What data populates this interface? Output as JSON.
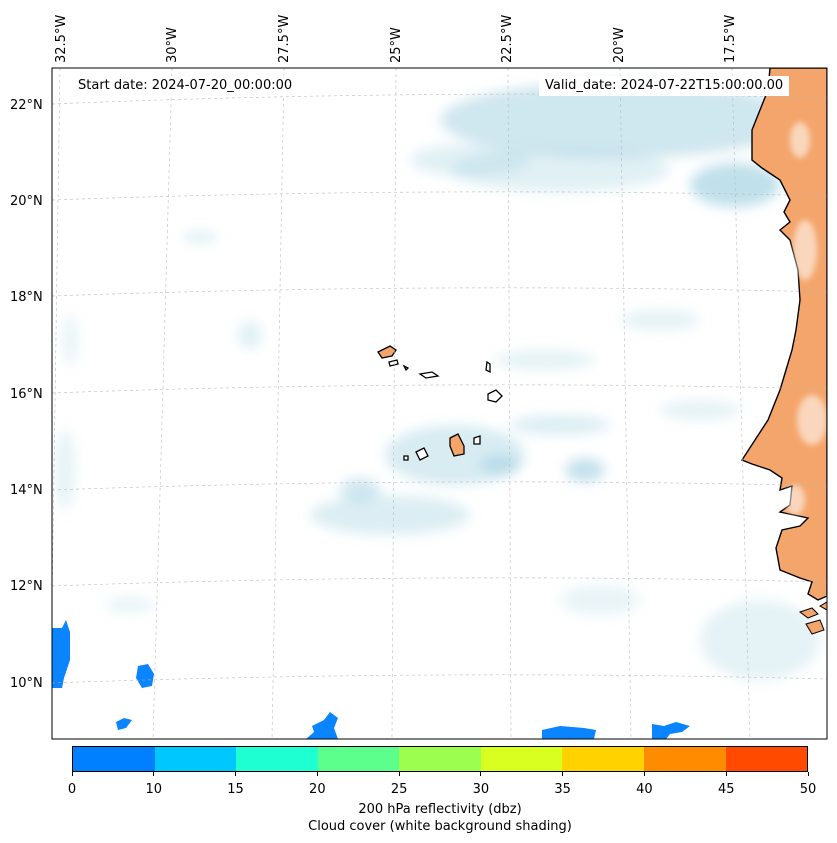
{
  "map": {
    "longitude_labels": [
      "32.5°W",
      "30°W",
      "27.5°W",
      "25°W",
      "22.5°W",
      "20°W",
      "17.5°W"
    ],
    "latitude_labels": [
      "22°N",
      "20°N",
      "18°N",
      "16°N",
      "14°N",
      "12°N",
      "10°N"
    ],
    "start_date": "Start date: 2024-07-20_00:00:00",
    "valid_date": "Valid_date: 2024-07-22T15:00:00.00",
    "land_color": "#f4a56b",
    "cloud_color": "#a8d4e2",
    "reflectivity_color": "#0a84ff"
  },
  "colorbar": {
    "ticks": [
      "0",
      "10",
      "15",
      "20",
      "25",
      "30",
      "35",
      "40",
      "45",
      "50"
    ],
    "colors": [
      "#0080ff",
      "#00c8ff",
      "#1effd2",
      "#5cff8c",
      "#9cff50",
      "#d8ff20",
      "#ffd200",
      "#ff8c00",
      "#ff4a00"
    ],
    "label_line1": "200 hPa reflectivity (dbz)",
    "label_line2": "Cloud cover (white background shading)"
  }
}
